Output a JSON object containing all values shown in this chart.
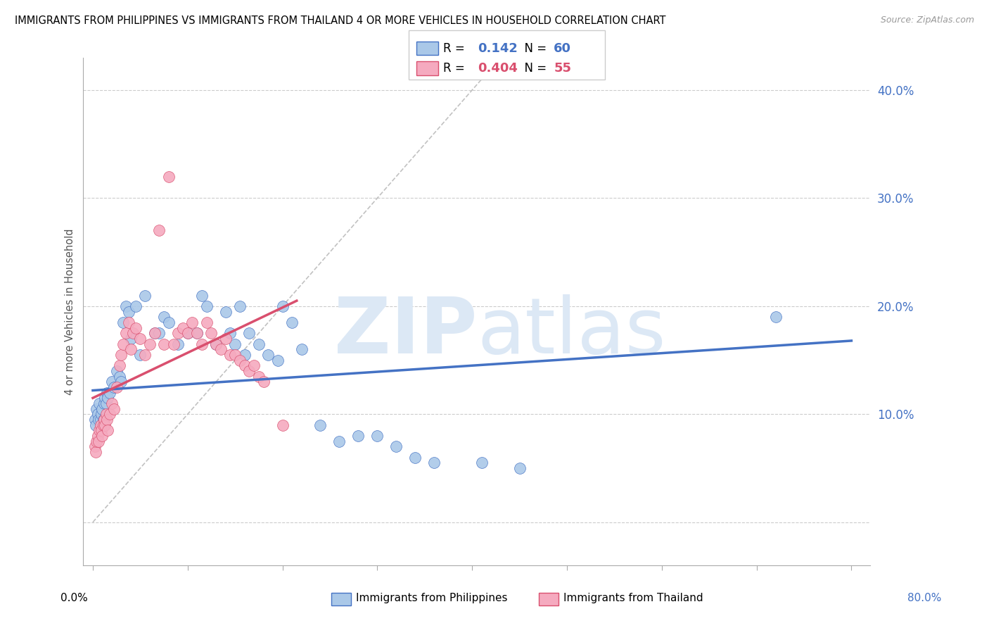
{
  "title": "IMMIGRANTS FROM PHILIPPINES VS IMMIGRANTS FROM THAILAND 4 OR MORE VEHICLES IN HOUSEHOLD CORRELATION CHART",
  "source": "Source: ZipAtlas.com",
  "ylabel": "4 or more Vehicles in Household",
  "yticks": [
    0.0,
    0.1,
    0.2,
    0.3,
    0.4
  ],
  "ytick_labels": [
    "",
    "10.0%",
    "20.0%",
    "30.0%",
    "40.0%"
  ],
  "xticks": [
    0.0,
    0.1,
    0.2,
    0.3,
    0.4,
    0.5,
    0.6,
    0.7,
    0.8
  ],
  "xlim": [
    -0.01,
    0.82
  ],
  "ylim": [
    -0.04,
    0.43
  ],
  "R_philippines": 0.142,
  "N_philippines": 60,
  "R_thailand": 0.404,
  "N_thailand": 55,
  "color_philippines": "#aac8e8",
  "color_thailand": "#f5aabf",
  "line_color_philippines": "#4472c4",
  "line_color_thailand": "#d94f6e",
  "watermark_zip": "ZIP",
  "watermark_atlas": "atlas",
  "watermark_color": "#dce8f5",
  "legend_label_philippines": "Immigrants from Philippines",
  "legend_label_thailand": "Immigrants from Thailand",
  "philippines_x": [
    0.002,
    0.003,
    0.004,
    0.005,
    0.006,
    0.007,
    0.008,
    0.009,
    0.01,
    0.011,
    0.012,
    0.013,
    0.014,
    0.015,
    0.016,
    0.018,
    0.02,
    0.022,
    0.025,
    0.028,
    0.03,
    0.032,
    0.035,
    0.038,
    0.04,
    0.045,
    0.05,
    0.055,
    0.065,
    0.07,
    0.075,
    0.08,
    0.09,
    0.1,
    0.11,
    0.115,
    0.12,
    0.13,
    0.14,
    0.145,
    0.15,
    0.155,
    0.16,
    0.165,
    0.175,
    0.185,
    0.195,
    0.2,
    0.21,
    0.22,
    0.24,
    0.26,
    0.28,
    0.3,
    0.32,
    0.34,
    0.36,
    0.41,
    0.45,
    0.72
  ],
  "philippines_y": [
    0.095,
    0.09,
    0.105,
    0.1,
    0.095,
    0.11,
    0.095,
    0.1,
    0.105,
    0.095,
    0.11,
    0.115,
    0.11,
    0.12,
    0.115,
    0.12,
    0.13,
    0.125,
    0.14,
    0.135,
    0.13,
    0.185,
    0.2,
    0.195,
    0.17,
    0.2,
    0.155,
    0.21,
    0.175,
    0.175,
    0.19,
    0.185,
    0.165,
    0.175,
    0.175,
    0.21,
    0.2,
    0.165,
    0.195,
    0.175,
    0.165,
    0.2,
    0.155,
    0.175,
    0.165,
    0.155,
    0.15,
    0.2,
    0.185,
    0.16,
    0.09,
    0.075,
    0.08,
    0.08,
    0.07,
    0.06,
    0.055,
    0.055,
    0.05,
    0.19
  ],
  "thailand_x": [
    0.002,
    0.003,
    0.004,
    0.005,
    0.006,
    0.007,
    0.008,
    0.009,
    0.01,
    0.011,
    0.012,
    0.013,
    0.014,
    0.015,
    0.016,
    0.018,
    0.02,
    0.022,
    0.025,
    0.028,
    0.03,
    0.032,
    0.035,
    0.038,
    0.04,
    0.042,
    0.045,
    0.05,
    0.055,
    0.06,
    0.065,
    0.07,
    0.075,
    0.08,
    0.085,
    0.09,
    0.095,
    0.1,
    0.105,
    0.11,
    0.115,
    0.12,
    0.125,
    0.13,
    0.135,
    0.14,
    0.145,
    0.15,
    0.155,
    0.16,
    0.165,
    0.17,
    0.175,
    0.18,
    0.2
  ],
  "thailand_y": [
    0.07,
    0.065,
    0.075,
    0.08,
    0.075,
    0.085,
    0.09,
    0.085,
    0.08,
    0.09,
    0.095,
    0.09,
    0.1,
    0.095,
    0.085,
    0.1,
    0.11,
    0.105,
    0.125,
    0.145,
    0.155,
    0.165,
    0.175,
    0.185,
    0.16,
    0.175,
    0.18,
    0.17,
    0.155,
    0.165,
    0.175,
    0.27,
    0.165,
    0.32,
    0.165,
    0.175,
    0.18,
    0.175,
    0.185,
    0.175,
    0.165,
    0.185,
    0.175,
    0.165,
    0.16,
    0.17,
    0.155,
    0.155,
    0.15,
    0.145,
    0.14,
    0.145,
    0.135,
    0.13,
    0.09
  ],
  "phil_line_x": [
    0.0,
    0.8
  ],
  "phil_line_y": [
    0.122,
    0.168
  ],
  "thai_line_x": [
    0.0,
    0.215
  ],
  "thai_line_y": [
    0.115,
    0.205
  ]
}
